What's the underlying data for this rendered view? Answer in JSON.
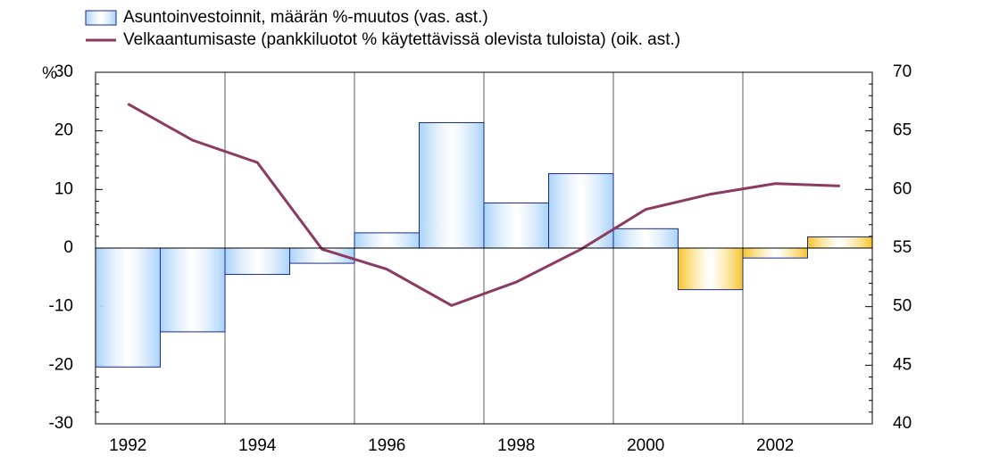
{
  "chart_data": {
    "type": "bar-line",
    "ylabel": "%",
    "categories": [
      "1992",
      null,
      "1994",
      null,
      "1996",
      null,
      "1998",
      null,
      "2000",
      null,
      "2002",
      null
    ],
    "series": [
      {
        "name": "Asuntoinvestoinnit, määrän %-muutos (vas. ast.)",
        "type": "bar",
        "color": "#a9d2f7",
        "colors": [
          "#a9d2f7",
          "#a9d2f7",
          "#a9d2f7",
          "#a9d2f7",
          "#a9d2f7",
          "#a9d2f7",
          "#a9d2f7",
          "#a9d2f7",
          "#a9d2f7",
          "#f7c42a",
          "#f7c42a",
          "#f7c42a"
        ],
        "values": [
          -20.3,
          -14.3,
          -4.5,
          -2.6,
          2.6,
          21.4,
          7.7,
          12.7,
          3.3,
          -7.1,
          -1.7,
          1.9
        ]
      },
      {
        "name": "Velkaantumisaste (pankkiluotot % käytettävissä olevista tuloista) (oik. ast.)",
        "type": "line",
        "axis": "y2",
        "color": "#8b3a62",
        "values": [
          67.3,
          64.2,
          62.3,
          54.9,
          53.2,
          50.1,
          52.1,
          54.9,
          58.3,
          59.6,
          60.5,
          60.3
        ]
      }
    ],
    "ylim": [
      -30,
      30
    ],
    "yticks": [
      -30,
      -20,
      -10,
      0,
      10,
      20,
      30
    ],
    "y2lim": [
      40,
      70
    ],
    "y2ticks": [
      40,
      45,
      50,
      55,
      60,
      65,
      70
    ],
    "grid": true
  }
}
